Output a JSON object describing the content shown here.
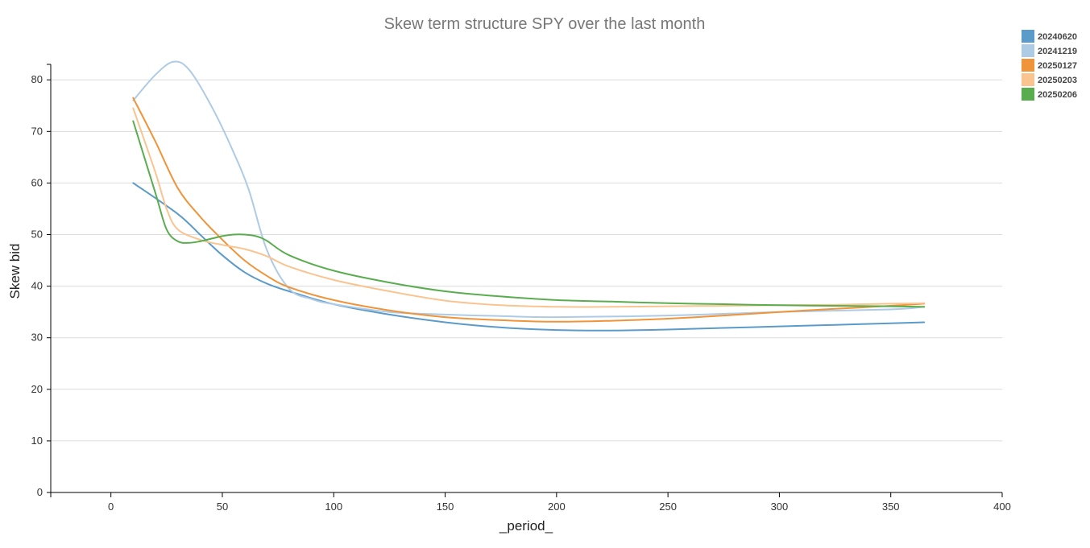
{
  "chart_data": {
    "type": "line",
    "title": "Skew term structure SPY over the last month",
    "xlabel": "_period_",
    "ylabel": "Skew bid",
    "xlim": [
      -27,
      400
    ],
    "ylim": [
      0,
      83
    ],
    "x_ticks": [
      0,
      50,
      100,
      150,
      200,
      250,
      300,
      350,
      400
    ],
    "y_ticks": [
      0,
      10,
      20,
      30,
      40,
      50,
      60,
      70,
      80
    ],
    "grid": "horizontal",
    "legend_position": "top-right",
    "series": [
      {
        "name": "20240620",
        "color": "#5b9bc9",
        "x": [
          10,
          30,
          40,
          50,
          60,
          70,
          80,
          100,
          125,
          150,
          175,
          200,
          225,
          250,
          275,
          300,
          325,
          350,
          365
        ],
        "y": [
          60,
          54,
          50,
          46,
          42.7,
          40.5,
          39,
          36.5,
          34.5,
          33,
          32,
          31.5,
          31.4,
          31.6,
          31.9,
          32.2,
          32.5,
          32.8,
          33
        ]
      },
      {
        "name": "20241219",
        "color": "#aecbe6",
        "x": [
          10,
          20,
          28,
          35,
          45,
          55,
          62,
          70,
          80,
          90,
          100,
          125,
          150,
          175,
          200,
          250,
          300,
          350,
          365
        ],
        "y": [
          76,
          81,
          83.5,
          82,
          75,
          66,
          58.5,
          47,
          39.5,
          37.5,
          36.5,
          35,
          34.5,
          34.2,
          34,
          34.3,
          35,
          35.5,
          36
        ]
      },
      {
        "name": "20250127",
        "color": "#f0943a",
        "x": [
          10,
          20,
          30,
          40,
          50,
          60,
          70,
          80,
          100,
          125,
          150,
          175,
          200,
          225,
          250,
          275,
          300,
          325,
          350,
          365
        ],
        "y": [
          76.5,
          68,
          59,
          53.5,
          49,
          45,
          42,
          39.8,
          37.3,
          35.3,
          34,
          33.4,
          33.1,
          33.3,
          33.7,
          34.3,
          35,
          35.6,
          36.2,
          36.6
        ]
      },
      {
        "name": "20250203",
        "color": "#f9c48f",
        "x": [
          10,
          20,
          25,
          30,
          40,
          50,
          60,
          70,
          80,
          100,
          125,
          150,
          175,
          200,
          225,
          250,
          275,
          300,
          325,
          350,
          365
        ],
        "y": [
          74.5,
          62,
          55,
          51,
          49,
          48,
          47.2,
          45.8,
          43.8,
          41.2,
          39,
          37.2,
          36.3,
          36,
          36,
          36.1,
          36.2,
          36.3,
          36.4,
          36.6,
          36.7
        ]
      },
      {
        "name": "20250206",
        "color": "#5aad4f",
        "x": [
          10,
          20,
          25,
          30,
          35,
          40,
          45,
          50,
          55,
          60,
          65,
          70,
          80,
          100,
          125,
          150,
          175,
          200,
          225,
          250,
          275,
          300,
          325,
          350,
          365
        ],
        "y": [
          72,
          58,
          51,
          48.7,
          48.4,
          48.7,
          49.2,
          49.7,
          50,
          50,
          49.7,
          48.8,
          46,
          43,
          40.7,
          39,
          38,
          37.3,
          37,
          36.7,
          36.5,
          36.3,
          36.2,
          36.1,
          36
        ]
      }
    ]
  }
}
